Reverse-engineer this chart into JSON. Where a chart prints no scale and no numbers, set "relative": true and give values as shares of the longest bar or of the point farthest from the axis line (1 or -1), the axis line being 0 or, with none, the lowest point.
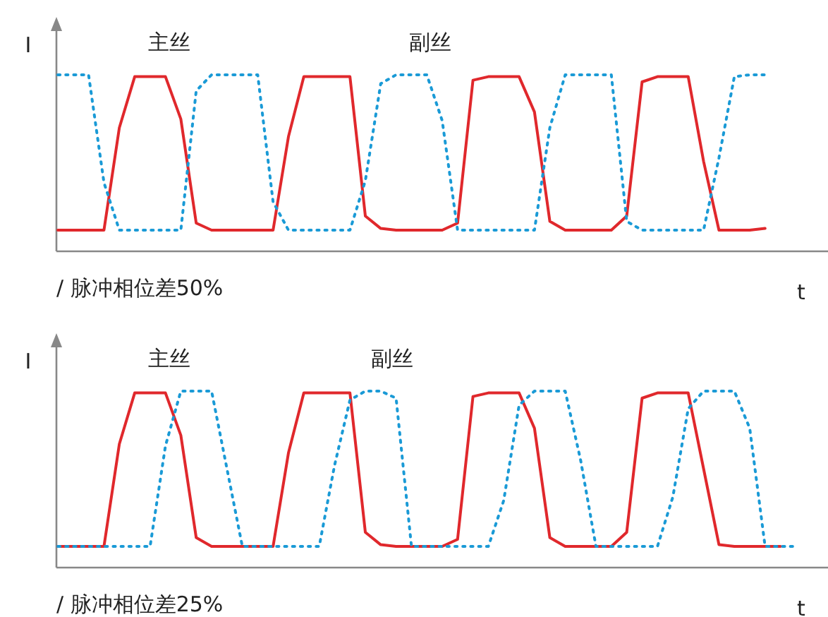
{
  "chart_data": [
    {
      "type": "line",
      "relative": true,
      "xlabel": "t",
      "ylabel": "I",
      "annotations": [
        "/ 脉冲相位差50%"
      ],
      "categories": [
        null,
        null,
        null,
        null,
        null,
        null,
        null,
        null,
        null,
        null,
        null,
        null,
        null,
        null,
        null,
        null,
        null,
        null,
        null,
        null,
        null,
        null,
        null,
        null,
        null,
        null,
        null,
        null,
        null,
        null,
        null,
        null,
        null,
        null,
        null,
        null,
        null,
        null,
        null,
        null,
        null,
        null,
        null,
        null,
        null,
        null,
        null,
        null,
        null
      ],
      "series": [
        {
          "name": "主丝",
          "color": "#e0282c",
          "line_style": "solid",
          "values": [
            0.12,
            0.12,
            0.12,
            0.12,
            0.7,
            0.99,
            0.99,
            0.99,
            0.75,
            0.16,
            0.12,
            0.12,
            0.12,
            0.12,
            0.12,
            0.65,
            0.99,
            0.99,
            0.99,
            0.99,
            0.2,
            0.13,
            0.12,
            0.12,
            0.12,
            0.12,
            0.16,
            0.97,
            0.99,
            0.99,
            0.99,
            0.79,
            0.17,
            0.12,
            0.12,
            0.12,
            0.12,
            0.2,
            0.96,
            0.99,
            0.99,
            0.99,
            0.51,
            0.12,
            0.12,
            0.12,
            0.13,
            null,
            null
          ]
        },
        {
          "name": "副丝",
          "color": "#1a9ad6",
          "line_style": "dotted",
          "values": [
            1,
            1,
            1,
            0.39,
            0.12,
            0.12,
            0.12,
            0.12,
            0.12,
            0.91,
            1,
            1,
            1,
            1,
            0.28,
            0.12,
            0.12,
            0.12,
            0.12,
            0.12,
            0.4,
            0.95,
            1,
            1,
            1,
            0.74,
            0.12,
            0.12,
            0.12,
            0.12,
            0.12,
            0.12,
            0.7,
            1,
            1,
            1,
            1,
            0.17,
            0.12,
            0.12,
            0.12,
            0.12,
            0.12,
            0.53,
            0.99,
            1,
            1,
            null,
            null
          ]
        }
      ]
    },
    {
      "type": "line",
      "relative": true,
      "xlabel": "t",
      "ylabel": "I",
      "annotations": [
        "/ 脉冲相位差25%"
      ],
      "categories": [
        null,
        null,
        null,
        null,
        null,
        null,
        null,
        null,
        null,
        null,
        null,
        null,
        null,
        null,
        null,
        null,
        null,
        null,
        null,
        null,
        null,
        null,
        null,
        null,
        null,
        null,
        null,
        null,
        null,
        null,
        null,
        null,
        null,
        null,
        null,
        null,
        null,
        null,
        null,
        null,
        null,
        null,
        null,
        null,
        null,
        null,
        null,
        null,
        null
      ],
      "series": [
        {
          "name": "主丝",
          "color": "#e0282c",
          "line_style": "solid",
          "values": [
            0.12,
            0.12,
            0.12,
            0.12,
            0.7,
            0.99,
            0.99,
            0.99,
            0.75,
            0.17,
            0.12,
            0.12,
            0.12,
            0.12,
            0.12,
            0.65,
            0.99,
            0.99,
            0.99,
            0.99,
            0.2,
            0.13,
            0.12,
            0.12,
            0.12,
            0.12,
            0.16,
            0.97,
            0.99,
            0.99,
            0.99,
            0.79,
            0.17,
            0.12,
            0.12,
            0.12,
            0.12,
            0.2,
            0.96,
            0.99,
            0.99,
            0.99,
            0.56,
            0.13,
            0.12,
            0.12,
            0.12,
            0.12,
            null
          ]
        },
        {
          "name": "副丝",
          "color": "#1a9ad6",
          "line_style": "dotted",
          "values": [
            0.12,
            0.12,
            0.12,
            0.12,
            0.12,
            0.12,
            0.12,
            0.69,
            1,
            1,
            1,
            0.56,
            0.12,
            0.12,
            0.12,
            0.12,
            0.12,
            0.12,
            0.58,
            0.95,
            1,
            1,
            0.96,
            0.12,
            0.12,
            0.12,
            0.12,
            0.12,
            0.12,
            0.38,
            0.92,
            1,
            1,
            1,
            0.61,
            0.12,
            0.12,
            0.12,
            0.12,
            0.12,
            0.4,
            0.9,
            1,
            1,
            1,
            0.79,
            0.12,
            0.12,
            0.12
          ]
        }
      ]
    }
  ]
}
